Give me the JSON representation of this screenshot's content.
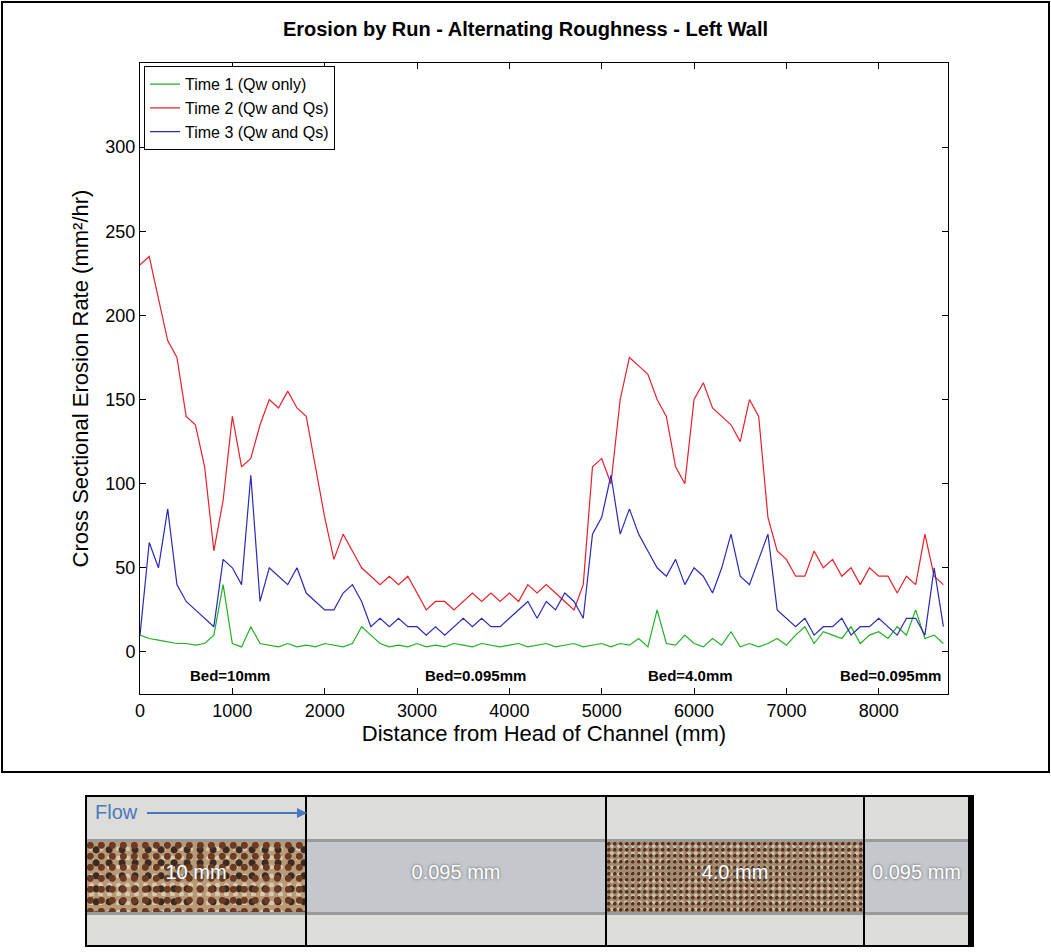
{
  "chart_data": {
    "type": "line",
    "title": "Erosion by Run - Alternating Roughness - Left Wall",
    "x_label": "Distance from Head of Channel (mm)",
    "y_label": "Cross Sectional Erosion Rate (mm²/hr)",
    "x": [
      0,
      100,
      200,
      300,
      400,
      500,
      600,
      700,
      800,
      900,
      1000,
      1100,
      1200,
      1300,
      1400,
      1500,
      1600,
      1700,
      1800,
      1900,
      2000,
      2100,
      2200,
      2300,
      2400,
      2500,
      2600,
      2700,
      2800,
      2900,
      3000,
      3100,
      3200,
      3300,
      3400,
      3500,
      3600,
      3700,
      3800,
      3900,
      4000,
      4100,
      4200,
      4300,
      4400,
      4500,
      4600,
      4700,
      4800,
      4900,
      5000,
      5100,
      5200,
      5300,
      5400,
      5500,
      5600,
      5700,
      5800,
      5900,
      6000,
      6100,
      6200,
      6300,
      6400,
      6500,
      6600,
      6700,
      6800,
      6900,
      7000,
      7100,
      7200,
      7300,
      7400,
      7500,
      7600,
      7700,
      7800,
      7900,
      8000,
      8100,
      8200,
      8300,
      8400,
      8500,
      8600,
      8700
    ],
    "series": [
      {
        "name": "Time 1 (Qw only)",
        "color": "#22b022",
        "values": [
          10,
          8,
          7,
          6,
          5,
          5,
          4,
          5,
          10,
          40,
          5,
          3,
          15,
          5,
          4,
          3,
          5,
          3,
          4,
          3,
          5,
          4,
          3,
          5,
          15,
          10,
          5,
          3,
          4,
          3,
          5,
          3,
          4,
          3,
          5,
          4,
          3,
          5,
          4,
          3,
          4,
          5,
          3,
          4,
          5,
          3,
          4,
          5,
          3,
          4,
          5,
          3,
          5,
          4,
          8,
          3,
          25,
          5,
          4,
          10,
          5,
          3,
          8,
          4,
          12,
          3,
          5,
          3,
          5,
          8,
          4,
          10,
          15,
          5,
          12,
          10,
          8,
          15,
          5,
          10,
          12,
          8,
          15,
          10,
          25,
          8,
          10,
          5
        ]
      },
      {
        "name": "Time 2 (Qw and Qs)",
        "color": "#e8202a",
        "values": [
          230,
          235,
          210,
          185,
          175,
          140,
          135,
          110,
          60,
          90,
          140,
          110,
          115,
          135,
          150,
          145,
          155,
          145,
          140,
          110,
          80,
          55,
          70,
          60,
          50,
          45,
          40,
          45,
          40,
          45,
          35,
          25,
          30,
          30,
          25,
          30,
          35,
          30,
          35,
          30,
          35,
          30,
          40,
          35,
          40,
          35,
          30,
          25,
          40,
          110,
          115,
          100,
          150,
          175,
          170,
          165,
          150,
          140,
          110,
          100,
          150,
          160,
          145,
          140,
          135,
          125,
          150,
          140,
          80,
          60,
          55,
          45,
          45,
          60,
          50,
          55,
          45,
          50,
          40,
          50,
          45,
          45,
          35,
          45,
          40,
          70,
          45,
          40
        ]
      },
      {
        "name": "Time 3 (Qw and Qs)",
        "color": "#2a2ab8",
        "values": [
          10,
          65,
          50,
          85,
          40,
          30,
          25,
          20,
          15,
          55,
          50,
          40,
          105,
          30,
          50,
          45,
          40,
          50,
          35,
          30,
          25,
          25,
          35,
          40,
          30,
          15,
          20,
          15,
          20,
          15,
          15,
          10,
          15,
          10,
          15,
          20,
          15,
          20,
          15,
          15,
          20,
          25,
          30,
          20,
          30,
          25,
          35,
          30,
          20,
          70,
          80,
          105,
          70,
          85,
          70,
          60,
          50,
          45,
          55,
          40,
          50,
          45,
          35,
          50,
          70,
          45,
          40,
          55,
          70,
          25,
          20,
          15,
          20,
          10,
          15,
          15,
          20,
          10,
          15,
          15,
          20,
          15,
          10,
          20,
          20,
          10,
          50,
          15
        ]
      }
    ],
    "xlim": [
      0,
      8750
    ],
    "ylim": [
      -25,
      350
    ],
    "xticks": [
      0,
      1000,
      2000,
      3000,
      4000,
      5000,
      6000,
      7000,
      8000
    ],
    "yticks": [
      0,
      50,
      100,
      150,
      200,
      250,
      300
    ],
    "grid": false,
    "legend": "upper left",
    "annotations": [
      {
        "text": "Bed=10mm",
        "x": 975,
        "y": -14
      },
      {
        "text": "Bed=0.095mm",
        "x": 3630,
        "y": -14
      },
      {
        "text": "Bed=4.0mm",
        "x": 5960,
        "y": -14
      },
      {
        "text": "Bed=0.095mm",
        "x": 8125,
        "y": -14
      }
    ]
  },
  "strip": {
    "flow": "Flow",
    "panels": [
      {
        "label": "10 mm"
      },
      {
        "label": "0.095 mm"
      },
      {
        "label": "4.0 mm"
      },
      {
        "label": "0.095 mm"
      }
    ]
  }
}
